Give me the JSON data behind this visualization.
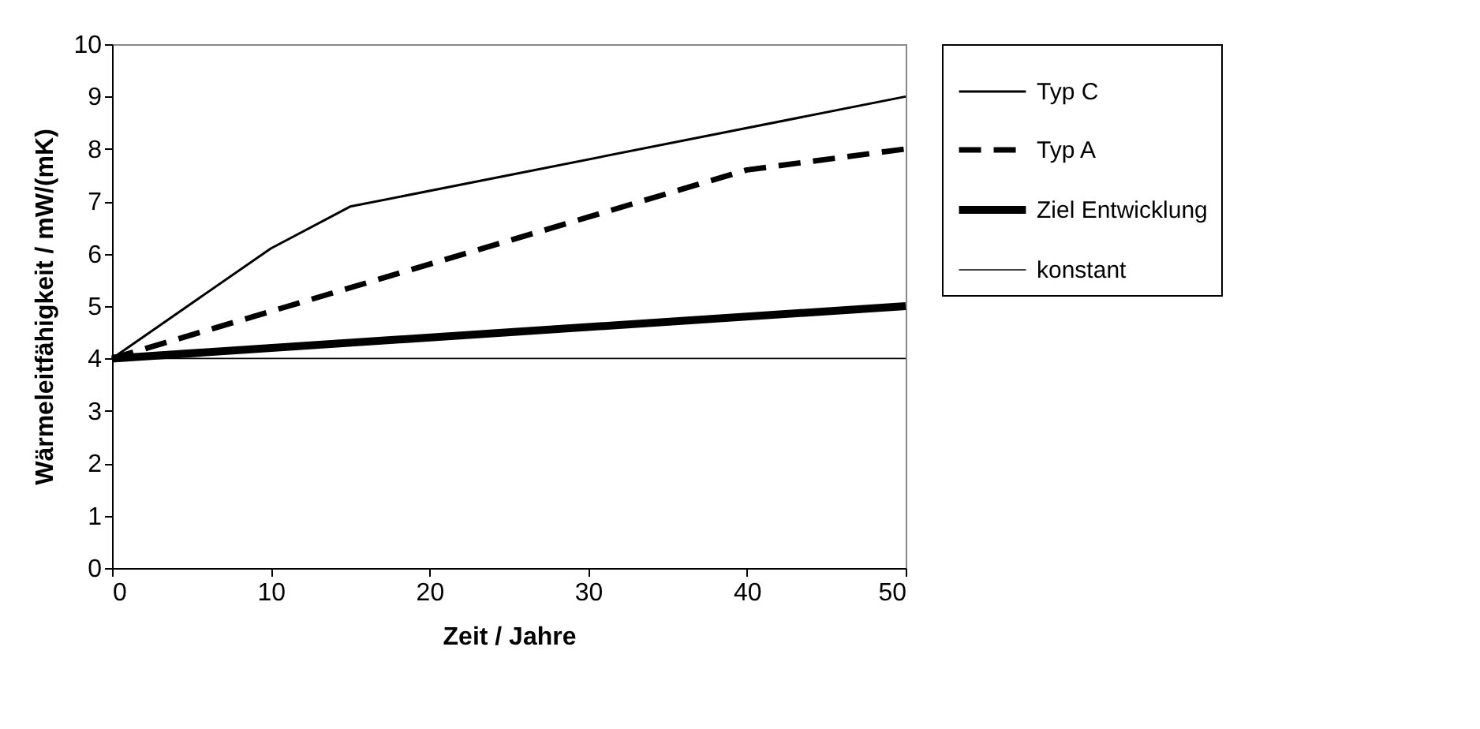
{
  "chart_data": {
    "type": "line",
    "xlabel": "Zeit / Jahre",
    "ylabel": "Wärmeleitfähigkeit / mW/(mK)",
    "series": [
      {
        "name": "Typ C",
        "color": "#000000",
        "line_style": "solid",
        "x": [
          0,
          10,
          15,
          50
        ],
        "values": [
          4,
          6.1,
          6.9,
          9
        ]
      },
      {
        "name": "Typ A",
        "color": "#000000",
        "line_style": "dashed",
        "x": [
          0,
          10,
          20,
          30,
          40,
          50
        ],
        "values": [
          4,
          4.9,
          5.8,
          6.7,
          7.6,
          8
        ]
      },
      {
        "name": "Ziel Entwicklung",
        "color": "#000000",
        "line_style": "solid",
        "x": [
          0,
          50
        ],
        "values": [
          4,
          5
        ]
      },
      {
        "name": "konstant",
        "color": "#000000",
        "line_style": "solid",
        "x": [
          0,
          50
        ],
        "values": [
          4,
          4
        ]
      }
    ],
    "xlim": [
      0,
      50
    ],
    "xticks": [
      0,
      10,
      20,
      30,
      40,
      50
    ],
    "ylim": [
      0,
      10
    ],
    "yticks": [
      0,
      1,
      2,
      3,
      4,
      5,
      6,
      7,
      8,
      9,
      10
    ],
    "grid": false,
    "legend": "right",
    "marker": "none"
  }
}
